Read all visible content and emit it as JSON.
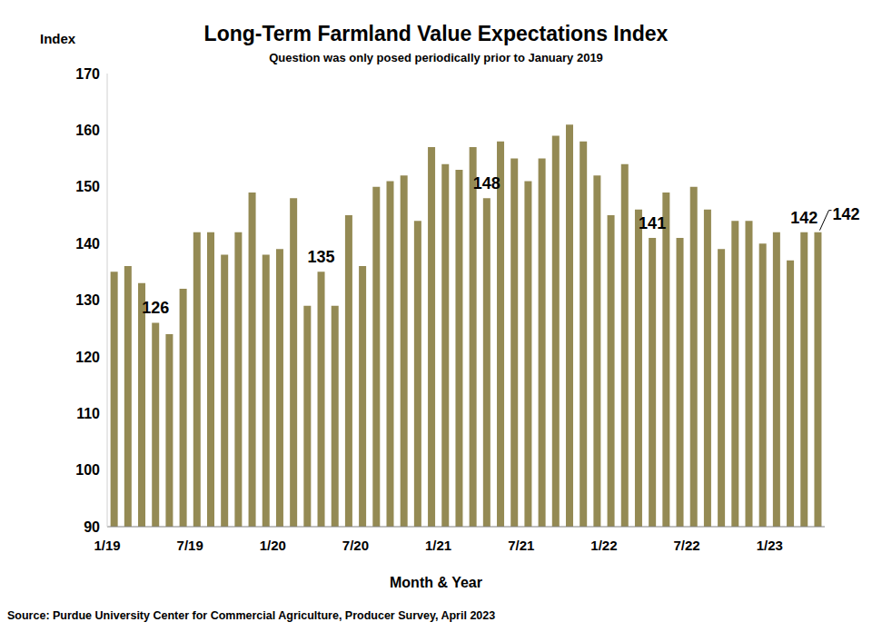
{
  "chart_data": {
    "type": "bar",
    "title": "Long-Term Farmland Value Expectations Index",
    "subtitle": "Question was only posed periodically prior to January 2019",
    "y_label": "Index",
    "x_label": "Month & Year",
    "source": "Source: Purdue University Center for Commercial Agriculture, Producer Survey, April 2023",
    "categories": [
      "1/19",
      null,
      null,
      null,
      null,
      null,
      "7/19",
      null,
      null,
      null,
      null,
      null,
      "1/20",
      null,
      null,
      null,
      null,
      null,
      "7/20",
      null,
      null,
      null,
      null,
      null,
      "1/21",
      null,
      null,
      null,
      null,
      null,
      "7/21",
      null,
      null,
      null,
      null,
      null,
      "1/22",
      null,
      null,
      null,
      null,
      null,
      "7/22",
      null,
      null,
      null,
      null,
      null,
      "1/23",
      null,
      null,
      null
    ],
    "values": [
      135,
      136,
      133,
      126,
      124,
      132,
      142,
      142,
      138,
      142,
      149,
      138,
      139,
      148,
      129,
      135,
      129,
      145,
      136,
      150,
      151,
      152,
      144,
      157,
      154,
      153,
      157,
      148,
      158,
      155,
      151,
      155,
      159,
      161,
      158,
      152,
      145,
      154,
      146,
      141,
      149,
      141,
      150,
      146,
      139,
      144,
      144,
      140,
      142,
      137,
      142,
      142
    ],
    "value_labels": [
      null,
      null,
      null,
      "126",
      null,
      null,
      null,
      null,
      null,
      null,
      null,
      null,
      null,
      null,
      null,
      "135",
      null,
      null,
      null,
      null,
      null,
      null,
      null,
      null,
      null,
      null,
      null,
      "148",
      null,
      null,
      null,
      null,
      null,
      null,
      null,
      null,
      null,
      null,
      null,
      "141",
      null,
      null,
      null,
      null,
      null,
      null,
      null,
      null,
      null,
      null,
      "142",
      "142"
    ],
    "color": "#948A54",
    "ylim": [
      90,
      170
    ],
    "yticks": [
      90,
      100,
      110,
      120,
      130,
      140,
      150,
      160,
      170
    ],
    "grid": false
  }
}
